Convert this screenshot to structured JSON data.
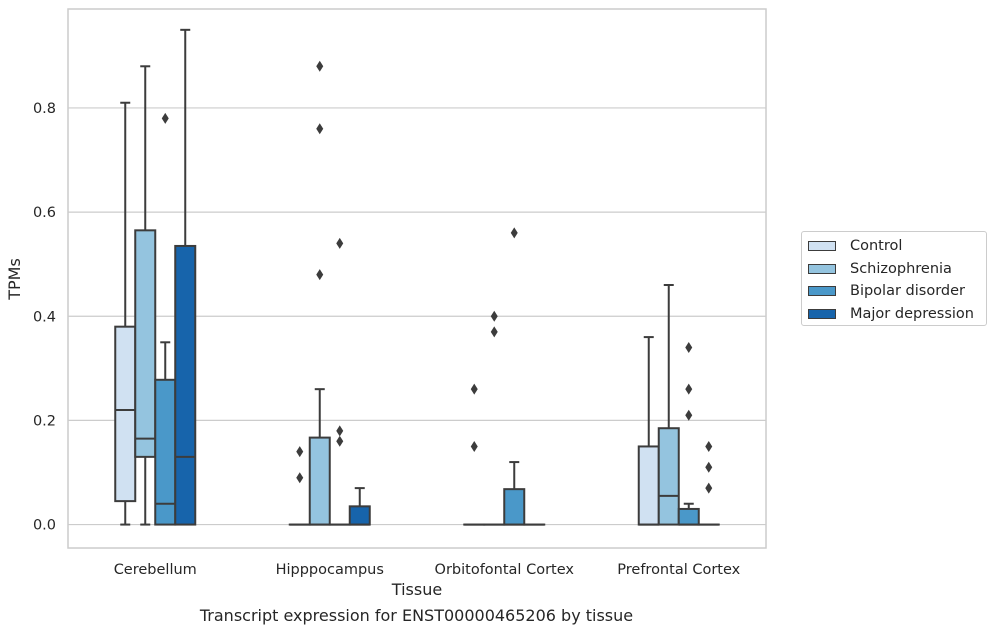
{
  "chart_data": {
    "type": "box",
    "title": "",
    "xlabel": "Tissue",
    "ylabel": "TPMs",
    "caption": "Transcript expression for ENST00000465206 by tissue",
    "categories": [
      "Cerebellum",
      "Hipppocampus",
      "Orbitofontal Cortex",
      "Prefrontal Cortex"
    ],
    "ylim": [
      -0.045,
      0.99
    ],
    "yticks": [
      0.0,
      0.2,
      0.4,
      0.6,
      0.8
    ],
    "ytick_labels": [
      "0.0",
      "0.2",
      "0.4",
      "0.6",
      "0.8"
    ],
    "grid": "horizontal",
    "legend_position": "right",
    "series": [
      {
        "name": "Control",
        "color": "#d0e1f2",
        "boxes": [
          {
            "min": 0.0,
            "q1": 0.045,
            "median": 0.22,
            "q3": 0.38,
            "max": 0.81,
            "outliers": []
          },
          {
            "min": 0.0,
            "q1": 0.0,
            "median": 0.0,
            "q3": 0.0,
            "max": 0.0,
            "outliers": [
              0.09,
              0.14
            ]
          },
          {
            "min": 0.0,
            "q1": 0.0,
            "median": 0.0,
            "q3": 0.0,
            "max": 0.0,
            "outliers": [
              0.15,
              0.26
            ]
          },
          {
            "min": 0.0,
            "q1": 0.0,
            "median": 0.0,
            "q3": 0.15,
            "max": 0.36,
            "outliers": []
          }
        ]
      },
      {
        "name": "Schizophrenia",
        "color": "#94c4df",
        "boxes": [
          {
            "min": 0.0,
            "q1": 0.13,
            "median": 0.165,
            "q3": 0.565,
            "max": 0.88,
            "outliers": []
          },
          {
            "min": 0.0,
            "q1": 0.0,
            "median": 0.0,
            "q3": 0.167,
            "max": 0.26,
            "outliers": [
              0.48,
              0.76,
              0.88
            ]
          },
          {
            "min": 0.0,
            "q1": 0.0,
            "median": 0.0,
            "q3": 0.0,
            "max": 0.0,
            "outliers": [
              0.37,
              0.4
            ]
          },
          {
            "min": 0.0,
            "q1": 0.0,
            "median": 0.055,
            "q3": 0.185,
            "max": 0.46,
            "outliers": []
          }
        ]
      },
      {
        "name": "Bipolar disorder",
        "color": "#4a98c9",
        "boxes": [
          {
            "min": 0.0,
            "q1": 0.0,
            "median": 0.04,
            "q3": 0.278,
            "max": 0.35,
            "outliers": [
              0.78
            ]
          },
          {
            "min": 0.0,
            "q1": 0.0,
            "median": 0.0,
            "q3": 0.0,
            "max": 0.0,
            "outliers": [
              0.16,
              0.18,
              0.54
            ]
          },
          {
            "min": 0.0,
            "q1": 0.0,
            "median": 0.0,
            "q3": 0.068,
            "max": 0.12,
            "outliers": [
              0.56
            ]
          },
          {
            "min": 0.0,
            "q1": 0.0,
            "median": 0.0,
            "q3": 0.03,
            "max": 0.04,
            "outliers": [
              0.21,
              0.26,
              0.34
            ]
          }
        ]
      },
      {
        "name": "Major depression",
        "color": "#1764ab",
        "boxes": [
          {
            "min": 0.0,
            "q1": 0.0,
            "median": 0.13,
            "q3": 0.535,
            "max": 0.95,
            "outliers": []
          },
          {
            "min": 0.0,
            "q1": 0.0,
            "median": 0.0,
            "q3": 0.035,
            "max": 0.07,
            "outliers": []
          },
          {
            "min": 0.0,
            "q1": 0.0,
            "median": 0.0,
            "q3": 0.0,
            "max": 0.0,
            "outliers": []
          },
          {
            "min": 0.0,
            "q1": 0.0,
            "median": 0.0,
            "q3": 0.0,
            "max": 0.0,
            "outliers": [
              0.07,
              0.11,
              0.15
            ]
          }
        ]
      }
    ]
  }
}
